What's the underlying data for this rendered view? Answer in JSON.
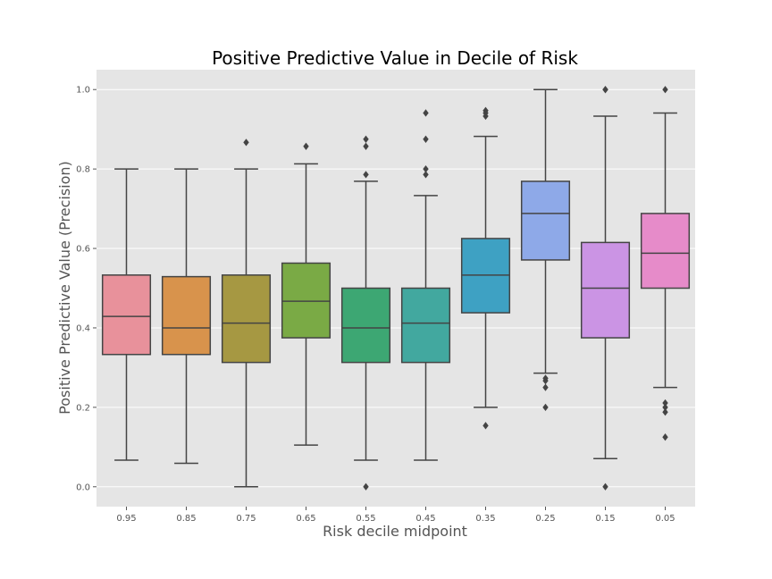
{
  "chart_data": {
    "type": "box",
    "title": "Positive Predictive Value in Decile of Risk",
    "xlabel": "Risk decile midpoint",
    "ylabel": "Positive Predictive Value (Precision)",
    "ylim": [
      -0.05,
      1.05
    ],
    "yticks": [
      0.0,
      0.2,
      0.4,
      0.6,
      0.8,
      1.0
    ],
    "ytick_labels": [
      "0.0",
      "0.2",
      "0.4",
      "0.6",
      "0.8",
      "1.0"
    ],
    "grid": true,
    "background": "#e5e5e5",
    "boxes": [
      {
        "category": "0.95",
        "color": "#e8919b",
        "whisker_low": 0.067,
        "q1": 0.333,
        "median": 0.429,
        "q3": 0.533,
        "whisker_high": 0.8,
        "outliers": []
      },
      {
        "category": "0.85",
        "color": "#d8934c",
        "whisker_low": 0.059,
        "q1": 0.333,
        "median": 0.4,
        "q3": 0.529,
        "whisker_high": 0.8,
        "outliers": []
      },
      {
        "category": "0.75",
        "color": "#a69842",
        "whisker_low": 0.0,
        "q1": 0.313,
        "median": 0.412,
        "q3": 0.533,
        "whisker_high": 0.8,
        "outliers": [
          0.867
        ]
      },
      {
        "category": "0.65",
        "color": "#7aaa45",
        "whisker_low": 0.105,
        "q1": 0.375,
        "median": 0.467,
        "q3": 0.563,
        "whisker_high": 0.813,
        "outliers": [
          0.857
        ]
      },
      {
        "category": "0.55",
        "color": "#3da773",
        "whisker_low": 0.067,
        "q1": 0.313,
        "median": 0.4,
        "q3": 0.5,
        "whisker_high": 0.769,
        "outliers": [
          0.0,
          0.786,
          0.857,
          0.875
        ]
      },
      {
        "category": "0.45",
        "color": "#42a89f",
        "whisker_low": 0.067,
        "q1": 0.313,
        "median": 0.412,
        "q3": 0.5,
        "whisker_high": 0.733,
        "outliers": [
          0.786,
          0.8,
          0.875,
          0.941
        ]
      },
      {
        "category": "0.35",
        "color": "#3ea1c3",
        "whisker_low": 0.2,
        "q1": 0.438,
        "median": 0.533,
        "q3": 0.625,
        "whisker_high": 0.882,
        "outliers": [
          0.154,
          0.933,
          0.941,
          0.947
        ]
      },
      {
        "category": "0.25",
        "color": "#8ea9e8",
        "whisker_low": 0.286,
        "q1": 0.571,
        "median": 0.688,
        "q3": 0.769,
        "whisker_high": 1.0,
        "outliers": [
          0.2,
          0.25,
          0.267,
          0.273
        ]
      },
      {
        "category": "0.15",
        "color": "#cb94e4",
        "whisker_low": 0.071,
        "q1": 0.375,
        "median": 0.5,
        "q3": 0.615,
        "whisker_high": 0.933,
        "outliers": [
          0.0,
          1.0,
          1.0
        ]
      },
      {
        "category": "0.05",
        "color": "#e68bc9",
        "whisker_low": 0.25,
        "q1": 0.5,
        "median": 0.588,
        "q3": 0.688,
        "whisker_high": 0.941,
        "outliers": [
          0.125,
          0.188,
          0.2,
          0.211,
          1.0
        ]
      }
    ]
  }
}
